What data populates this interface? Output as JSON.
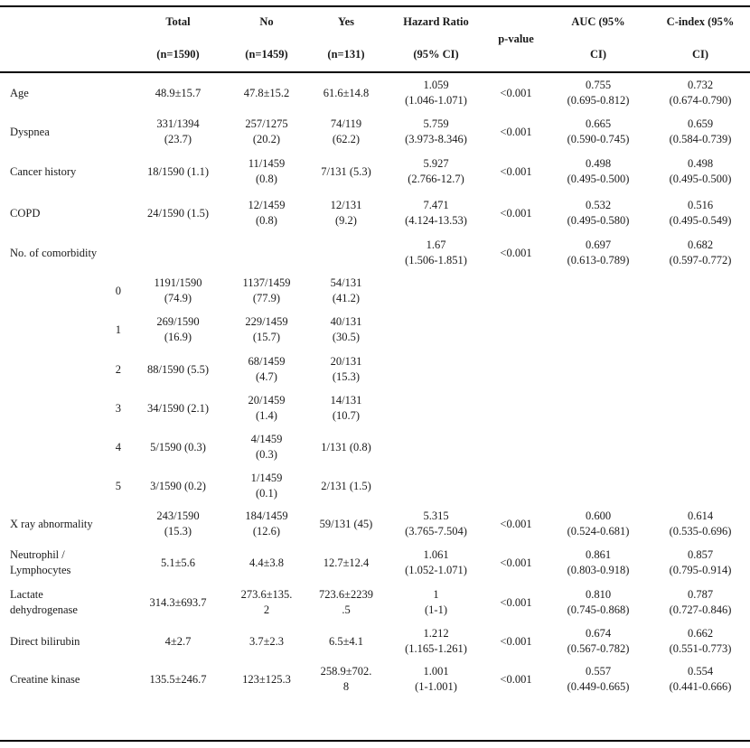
{
  "header": {
    "total": [
      "Total",
      "(n=1590)"
    ],
    "no": [
      "No",
      "(n=1459)"
    ],
    "yes": [
      "Yes",
      "(n=131)"
    ],
    "hr": [
      "Hazard Ratio",
      "(95% CI)"
    ],
    "p": "p-value",
    "auc": [
      "AUC (95%",
      "CI)"
    ],
    "cidx": [
      "C-index (95%",
      "CI)"
    ]
  },
  "rows": [
    {
      "label": [
        "Age"
      ],
      "total": [
        "48.9±15.7"
      ],
      "no": [
        "47.8±15.2"
      ],
      "yes": [
        "61.6±14.8"
      ],
      "hr": [
        "1.059",
        "(1.046-1.071)"
      ],
      "p": "<0.001",
      "auc": [
        "0.755",
        "(0.695-0.812)"
      ],
      "cidx": [
        "0.732",
        "(0.674-0.790)"
      ]
    },
    {
      "label": [
        "Dyspnea"
      ],
      "total": [
        "331/1394",
        "(23.7)"
      ],
      "no": [
        "257/1275",
        "(20.2)"
      ],
      "yes": [
        "74/119",
        "(62.2)"
      ],
      "hr": [
        "5.759",
        "(3.973-8.346)"
      ],
      "p": "<0.001",
      "auc": [
        "0.665",
        "(0.590-0.745)"
      ],
      "cidx": [
        "0.659",
        "(0.584-0.739)"
      ]
    },
    {
      "label": [
        "Cancer history"
      ],
      "total": [
        "18/1590 (1.1)"
      ],
      "no": [
        "11/1459",
        "(0.8)"
      ],
      "yes": [
        "7/131 (5.3)"
      ],
      "hr": [
        "5.927",
        "(2.766-12.7)"
      ],
      "p": "<0.001",
      "auc": [
        "0.498",
        "(0.495-0.500)"
      ],
      "cidx": [
        "0.498",
        "(0.495-0.500)"
      ]
    },
    {
      "label": [
        "COPD"
      ],
      "total": [
        "24/1590 (1.5)"
      ],
      "no": [
        "12/1459",
        "(0.8)"
      ],
      "yes": [
        "12/131",
        "(9.2)"
      ],
      "hr": [
        "7.471",
        "(4.124-13.53)"
      ],
      "p": "<0.001",
      "auc": [
        "0.532",
        "(0.495-0.580)"
      ],
      "cidx": [
        "0.516",
        "(0.495-0.549)"
      ]
    },
    {
      "label": [
        "No. of comorbidity"
      ],
      "total": [],
      "no": [],
      "yes": [],
      "hr": [
        "1.67",
        "(1.506-1.851)"
      ],
      "p": "<0.001",
      "auc": [
        "0.697",
        "(0.613-0.789)"
      ],
      "cidx": [
        "0.682",
        "(0.597-0.772)"
      ]
    },
    {
      "sub": "0",
      "total": [
        "1191/1590",
        "(74.9)"
      ],
      "no": [
        "1137/1459",
        "(77.9)"
      ],
      "yes": [
        "54/131",
        "(41.2)"
      ]
    },
    {
      "sub": "1",
      "total": [
        "269/1590",
        "(16.9)"
      ],
      "no": [
        "229/1459",
        "(15.7)"
      ],
      "yes": [
        "40/131",
        "(30.5)"
      ]
    },
    {
      "sub": "2",
      "total": [
        "88/1590 (5.5)"
      ],
      "no": [
        "68/1459",
        "(4.7)"
      ],
      "yes": [
        "20/131",
        "(15.3)"
      ]
    },
    {
      "sub": "3",
      "total": [
        "34/1590 (2.1)"
      ],
      "no": [
        "20/1459",
        "(1.4)"
      ],
      "yes": [
        "14/131",
        "(10.7)"
      ]
    },
    {
      "sub": "4",
      "total": [
        "5/1590 (0.3)"
      ],
      "no": [
        "4/1459",
        "(0.3)"
      ],
      "yes": [
        "1/131 (0.8)"
      ]
    },
    {
      "sub": "5",
      "total": [
        "3/1590 (0.2)"
      ],
      "no": [
        "1/1459",
        "(0.1)"
      ],
      "yes": [
        "2/131 (1.5)"
      ]
    },
    {
      "label": [
        "X ray abnormality"
      ],
      "total": [
        "243/1590",
        "(15.3)"
      ],
      "no": [
        "184/1459",
        "(12.6)"
      ],
      "yes": [
        "59/131 (45)"
      ],
      "hr": [
        "5.315",
        "(3.765-7.504)"
      ],
      "p": "<0.001",
      "auc": [
        "0.600",
        "(0.524-0.681)"
      ],
      "cidx": [
        "0.614",
        "(0.535-0.696)"
      ]
    },
    {
      "label": [
        "Neutrophil /",
        "Lymphocytes"
      ],
      "total": [
        "5.1±5.6"
      ],
      "no": [
        "4.4±3.8"
      ],
      "yes": [
        "12.7±12.4"
      ],
      "hr": [
        "1.061",
        "(1.052-1.071)"
      ],
      "p": "<0.001",
      "auc": [
        "0.861",
        "(0.803-0.918)"
      ],
      "cidx": [
        "0.857",
        "(0.795-0.914)"
      ]
    },
    {
      "label": [
        "Lactate",
        "dehydrogenase"
      ],
      "total": [
        "314.3±693.7"
      ],
      "no": [
        "273.6±135.",
        "2"
      ],
      "yes": [
        "723.6±2239",
        ".5"
      ],
      "hr": [
        "1",
        "(1-1)"
      ],
      "p": "<0.001",
      "auc": [
        "0.810",
        "(0.745-0.868)"
      ],
      "cidx": [
        "0.787",
        "(0.727-0.846)"
      ]
    },
    {
      "label": [
        "Direct bilirubin"
      ],
      "total": [
        "4±2.7"
      ],
      "no": [
        "3.7±2.3"
      ],
      "yes": [
        "6.5±4.1"
      ],
      "hr": [
        "1.212",
        "(1.165-1.261)"
      ],
      "p": "<0.001",
      "auc": [
        "0.674",
        "(0.567-0.782)"
      ],
      "cidx": [
        "0.662",
        "(0.551-0.773)"
      ]
    },
    {
      "label": [
        "Creatine kinase"
      ],
      "total": [
        "135.5±246.7"
      ],
      "no": [
        "123±125.3"
      ],
      "yes": [
        "258.9±702.",
        "8"
      ],
      "hr": [
        "1.001",
        "(1-1.001)"
      ],
      "p": "<0.001",
      "auc": [
        "0.557",
        "(0.449-0.665)"
      ],
      "cidx": [
        "0.554",
        "(0.441-0.666)"
      ]
    }
  ]
}
